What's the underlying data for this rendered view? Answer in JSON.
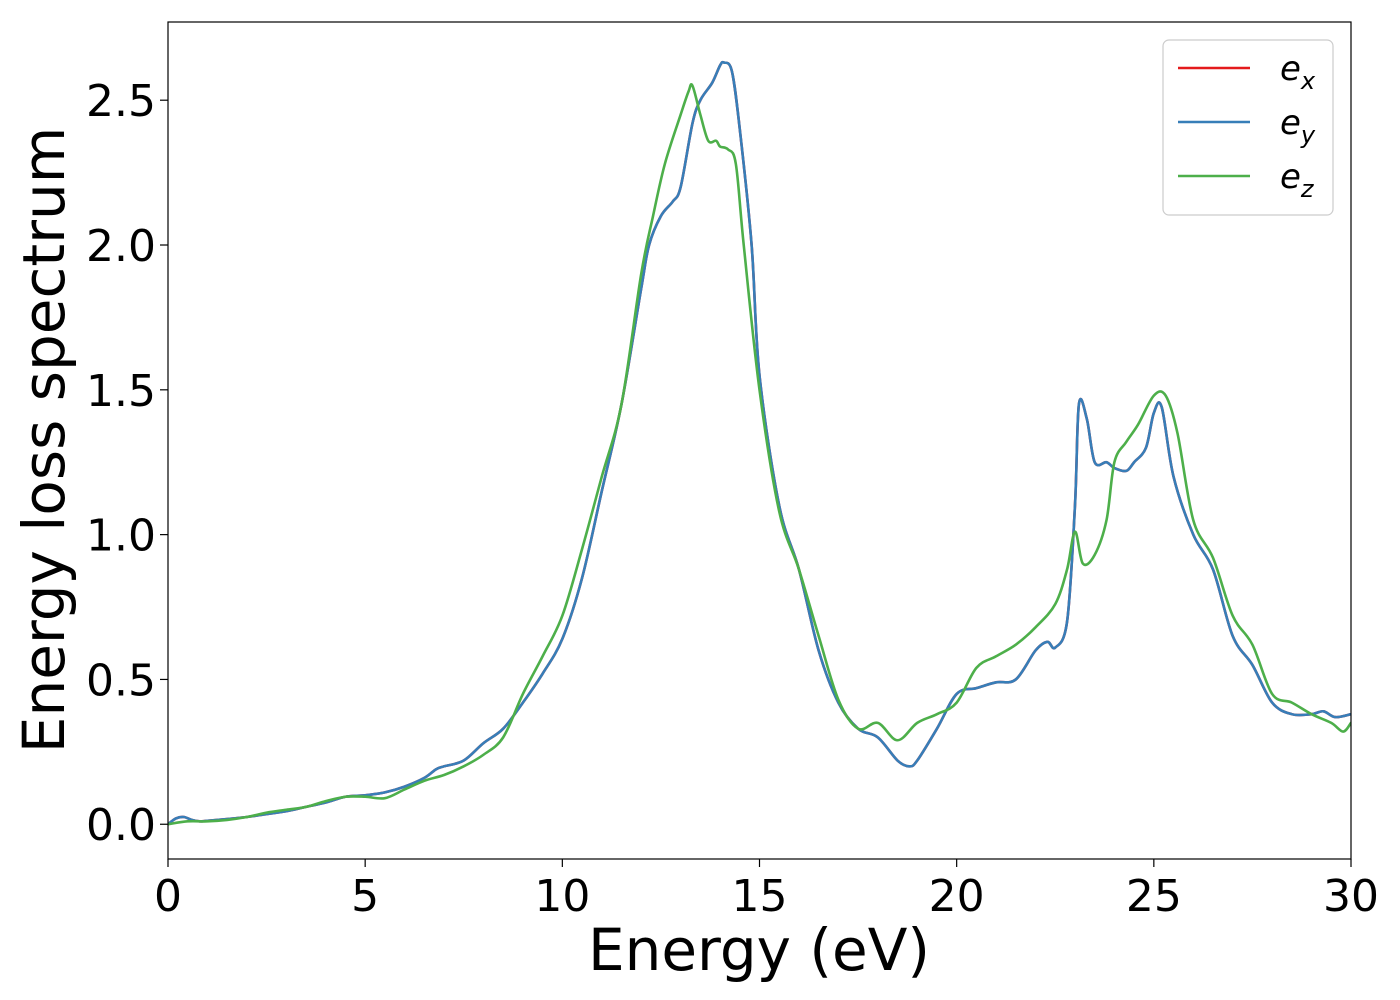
{
  "chart_data": {
    "type": "line",
    "title": "",
    "xlabel": "Energy (eV)",
    "ylabel": "Energy loss spectrum",
    "xlim": [
      0,
      30
    ],
    "ylim": [
      -0.12,
      2.77
    ],
    "xticks": [
      0,
      5,
      10,
      15,
      20,
      25,
      30
    ],
    "yticks": [
      0.0,
      0.5,
      1.0,
      1.5,
      2.0,
      2.5
    ],
    "xtick_labels": [
      "0",
      "5",
      "10",
      "15",
      "20",
      "25",
      "30"
    ],
    "ytick_labels": [
      "0.0",
      "0.5",
      "1.0",
      "1.5",
      "2.0",
      "2.5"
    ],
    "grid": false,
    "legend_position": "top-right",
    "series": [
      {
        "name": "e_x",
        "label_base": "e",
        "label_sub": "x",
        "color": "#e41a1c",
        "x": [
          0,
          0.2,
          0.4,
          0.6,
          0.8,
          1,
          1.5,
          2,
          2.5,
          3,
          3.5,
          4,
          4.5,
          5,
          5.5,
          6,
          6.5,
          6.8,
          7,
          7.5,
          8,
          8.5,
          9,
          9.5,
          10,
          10.5,
          11,
          11.5,
          12,
          12.2,
          12.5,
          12.8,
          13,
          13.3,
          13.5,
          13.8,
          14,
          14.1,
          14.3,
          14.5,
          14.8,
          15,
          15.5,
          16,
          16.5,
          17,
          17.5,
          18,
          18.5,
          18.8,
          19,
          19.5,
          20,
          20.5,
          21,
          21.5,
          22,
          22.3,
          22.5,
          22.8,
          23,
          23.1,
          23.3,
          23.5,
          23.8,
          24,
          24.3,
          24.5,
          24.8,
          25,
          25.2,
          25.5,
          26,
          26.5,
          27,
          27.5,
          28,
          28.5,
          29,
          29.3,
          29.6,
          30
        ],
        "y": [
          0.0,
          0.02,
          0.025,
          0.015,
          0.01,
          0.012,
          0.018,
          0.025,
          0.035,
          0.045,
          0.06,
          0.075,
          0.095,
          0.1,
          0.11,
          0.13,
          0.16,
          0.19,
          0.2,
          0.22,
          0.28,
          0.33,
          0.42,
          0.52,
          0.64,
          0.85,
          1.15,
          1.45,
          1.85,
          2.0,
          2.1,
          2.15,
          2.2,
          2.42,
          2.5,
          2.56,
          2.62,
          2.63,
          2.6,
          2.4,
          2.0,
          1.55,
          1.1,
          0.88,
          0.6,
          0.42,
          0.33,
          0.3,
          0.22,
          0.2,
          0.22,
          0.33,
          0.45,
          0.47,
          0.49,
          0.5,
          0.6,
          0.63,
          0.61,
          0.7,
          1.1,
          1.45,
          1.4,
          1.25,
          1.25,
          1.23,
          1.22,
          1.25,
          1.3,
          1.42,
          1.44,
          1.2,
          1.0,
          0.88,
          0.65,
          0.55,
          0.42,
          0.38,
          0.38,
          0.39,
          0.37,
          0.38
        ]
      },
      {
        "name": "e_y",
        "label_base": "e",
        "label_sub": "y",
        "color": "#377eb8",
        "x": [
          0,
          0.2,
          0.4,
          0.6,
          0.8,
          1,
          1.5,
          2,
          2.5,
          3,
          3.5,
          4,
          4.5,
          5,
          5.5,
          6,
          6.5,
          6.8,
          7,
          7.5,
          8,
          8.5,
          9,
          9.5,
          10,
          10.5,
          11,
          11.5,
          12,
          12.2,
          12.5,
          12.8,
          13,
          13.3,
          13.5,
          13.8,
          14,
          14.1,
          14.3,
          14.5,
          14.8,
          15,
          15.5,
          16,
          16.5,
          17,
          17.5,
          18,
          18.5,
          18.8,
          19,
          19.5,
          20,
          20.5,
          21,
          21.5,
          22,
          22.3,
          22.5,
          22.8,
          23,
          23.1,
          23.3,
          23.5,
          23.8,
          24,
          24.3,
          24.5,
          24.8,
          25,
          25.2,
          25.5,
          26,
          26.5,
          27,
          27.5,
          28,
          28.5,
          29,
          29.3,
          29.6,
          30
        ],
        "y": [
          0.0,
          0.02,
          0.025,
          0.015,
          0.01,
          0.012,
          0.018,
          0.025,
          0.035,
          0.045,
          0.06,
          0.075,
          0.095,
          0.1,
          0.11,
          0.13,
          0.16,
          0.19,
          0.2,
          0.22,
          0.28,
          0.33,
          0.42,
          0.52,
          0.64,
          0.85,
          1.15,
          1.45,
          1.85,
          2.0,
          2.1,
          2.15,
          2.2,
          2.42,
          2.5,
          2.56,
          2.62,
          2.63,
          2.6,
          2.4,
          2.0,
          1.55,
          1.1,
          0.88,
          0.6,
          0.42,
          0.33,
          0.3,
          0.22,
          0.2,
          0.22,
          0.33,
          0.45,
          0.47,
          0.49,
          0.5,
          0.6,
          0.63,
          0.61,
          0.7,
          1.1,
          1.45,
          1.4,
          1.25,
          1.25,
          1.23,
          1.22,
          1.25,
          1.3,
          1.42,
          1.44,
          1.2,
          1.0,
          0.88,
          0.65,
          0.55,
          0.42,
          0.38,
          0.38,
          0.39,
          0.37,
          0.38
        ]
      },
      {
        "name": "e_z",
        "label_base": "e",
        "label_sub": "z",
        "color": "#4daf4a",
        "x": [
          0,
          0.5,
          1,
          1.5,
          2,
          2.5,
          3,
          3.5,
          4,
          4.5,
          5,
          5.5,
          6,
          6.5,
          7,
          7.5,
          8,
          8.5,
          9,
          9.5,
          10,
          10.5,
          11,
          11.5,
          12,
          12.3,
          12.6,
          13,
          13.2,
          13.3,
          13.5,
          13.7,
          13.9,
          14,
          14.2,
          14.4,
          14.6,
          15,
          15.5,
          16,
          16.5,
          17,
          17.5,
          18,
          18.5,
          19,
          19.5,
          20,
          20.5,
          21,
          21.5,
          22,
          22.5,
          22.8,
          23,
          23.2,
          23.5,
          23.8,
          24,
          24.3,
          24.6,
          25,
          25.3,
          25.6,
          26,
          26.5,
          27,
          27.5,
          28,
          28.5,
          29,
          29.5,
          29.8,
          30
        ],
        "y": [
          0.0,
          0.01,
          0.01,
          0.015,
          0.025,
          0.04,
          0.05,
          0.06,
          0.08,
          0.095,
          0.095,
          0.09,
          0.12,
          0.15,
          0.17,
          0.2,
          0.24,
          0.3,
          0.45,
          0.58,
          0.72,
          0.95,
          1.2,
          1.45,
          1.9,
          2.1,
          2.28,
          2.45,
          2.53,
          2.55,
          2.45,
          2.36,
          2.36,
          2.34,
          2.33,
          2.28,
          2.0,
          1.5,
          1.08,
          0.88,
          0.65,
          0.43,
          0.33,
          0.35,
          0.29,
          0.35,
          0.38,
          0.42,
          0.54,
          0.58,
          0.62,
          0.68,
          0.76,
          0.88,
          1.01,
          0.9,
          0.93,
          1.05,
          1.25,
          1.32,
          1.38,
          1.48,
          1.48,
          1.35,
          1.05,
          0.92,
          0.72,
          0.62,
          0.45,
          0.42,
          0.38,
          0.35,
          0.32,
          0.35
        ]
      }
    ]
  }
}
